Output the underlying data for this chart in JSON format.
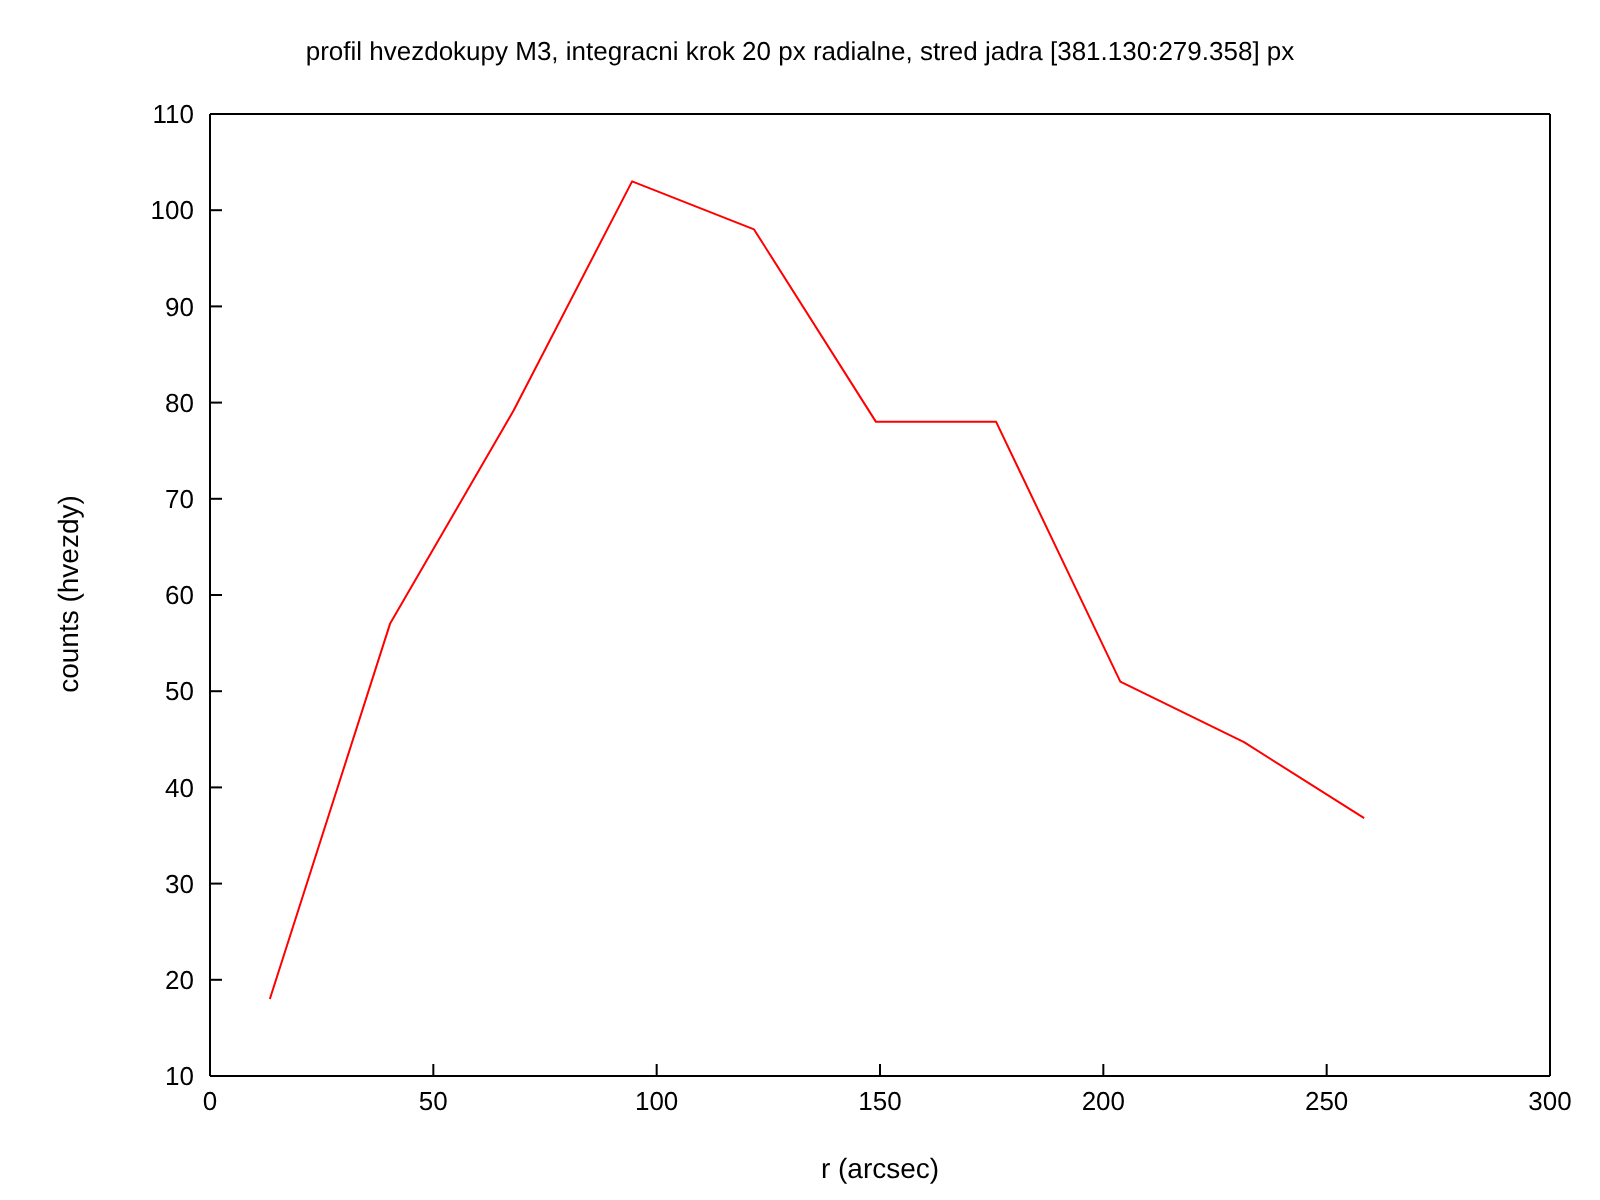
{
  "chart_data": {
    "type": "line",
    "title": "profil hvezdokupy M3, integracni krok 20 px radialne, stred jadra [381.130:279.358] px",
    "xlabel": "r (arcsec)",
    "ylabel": "counts (hvezdy)",
    "x": [
      13.4,
      40.3,
      68,
      94.5,
      121.8,
      149.1,
      176,
      203.8,
      231.5,
      258.4
    ],
    "series": [
      {
        "color": "#ff0000",
        "values": [
          18,
          57,
          79.2,
          103,
          98,
          78,
          78,
          51,
          44.7,
          36.8
        ]
      }
    ],
    "xlim": [
      0,
      300
    ],
    "xticks": [
      0,
      50,
      100,
      150,
      200,
      250,
      300
    ],
    "ylim": [
      10,
      110
    ],
    "yticks": [
      10,
      20,
      30,
      40,
      50,
      60,
      70,
      80,
      90,
      100,
      110
    ],
    "grid": false,
    "legend": false,
    "marker": "none",
    "line_style": "solid"
  }
}
